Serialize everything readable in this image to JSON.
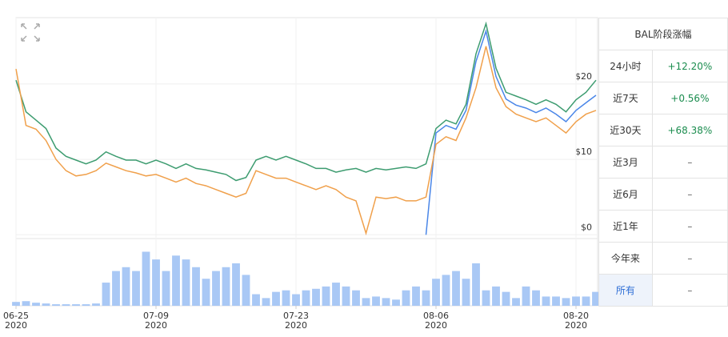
{
  "chart_data": [
    {
      "type": "line",
      "x": [
        0,
        1,
        2,
        3,
        4,
        5,
        6,
        7,
        8,
        9,
        10,
        11,
        12,
        13,
        14,
        15,
        16,
        17,
        18,
        19,
        20,
        21,
        22,
        23,
        24,
        25,
        26,
        27,
        28,
        29,
        30,
        31,
        32,
        33,
        34,
        35,
        36,
        37,
        38,
        39,
        40,
        41,
        42,
        43,
        44,
        45,
        46,
        47,
        48,
        49,
        50,
        51,
        52,
        53,
        54,
        55,
        56,
        57,
        58
      ],
      "xlim": [
        0,
        58
      ],
      "xticks": [
        {
          "value": 0,
          "label": "06-25\n2020"
        },
        {
          "value": 14,
          "label": "07-09\n2020"
        },
        {
          "value": 28,
          "label": "07-23\n2020"
        },
        {
          "value": 42,
          "label": "08-06\n2020"
        },
        {
          "value": 56,
          "label": "08-20\n2020"
        }
      ],
      "ylim": [
        -0.5,
        28.8
      ],
      "yticks": [
        {
          "value": 0,
          "label": "$0"
        },
        {
          "value": 10,
          "label": "$10"
        },
        {
          "value": 20,
          "label": "$20"
        }
      ],
      "grid": true,
      "series": [
        {
          "color": "#3d9c70",
          "values": [
            20.5,
            16.3,
            15.2,
            14.1,
            11.5,
            10.4,
            9.9,
            9.4,
            9.9,
            11.0,
            10.4,
            9.9,
            9.9,
            9.4,
            9.9,
            9.4,
            8.8,
            9.4,
            8.8,
            8.6,
            8.3,
            8.0,
            7.2,
            7.6,
            9.9,
            10.4,
            9.9,
            10.4,
            9.9,
            9.4,
            8.8,
            8.8,
            8.3,
            8.6,
            8.8,
            8.3,
            8.8,
            8.6,
            8.8,
            9.0,
            8.8,
            9.4,
            14.1,
            15.2,
            14.7,
            17.3,
            24.0,
            28.0,
            22.1,
            18.9,
            18.4,
            17.9,
            17.3,
            17.9,
            17.3,
            16.3,
            17.9,
            18.9,
            20.5
          ]
        },
        {
          "color": "#4a86e8",
          "values": [
            null,
            null,
            null,
            null,
            null,
            null,
            null,
            null,
            null,
            null,
            null,
            null,
            null,
            null,
            null,
            null,
            null,
            null,
            null,
            null,
            null,
            null,
            null,
            null,
            null,
            null,
            null,
            null,
            null,
            null,
            null,
            null,
            null,
            null,
            null,
            null,
            null,
            null,
            null,
            null,
            null,
            0.0,
            13.5,
            14.5,
            14.0,
            16.5,
            23.0,
            27.0,
            21.0,
            18.0,
            17.2,
            16.8,
            16.2,
            16.8,
            16.0,
            15.0,
            16.5,
            17.5,
            18.5
          ]
        },
        {
          "color": "#f0a04b",
          "values": [
            22.0,
            14.5,
            14.0,
            12.5,
            10.0,
            8.5,
            7.8,
            8.0,
            8.5,
            9.5,
            9.0,
            8.5,
            8.2,
            7.8,
            8.0,
            7.5,
            7.0,
            7.5,
            6.8,
            6.5,
            6.0,
            5.5,
            5.0,
            5.5,
            8.5,
            8.0,
            7.5,
            7.5,
            7.0,
            6.5,
            6.0,
            6.5,
            6.0,
            5.0,
            4.5,
            0.2,
            5.0,
            4.8,
            5.0,
            4.5,
            4.5,
            5.0,
            12.0,
            13.0,
            12.5,
            15.5,
            19.5,
            25.0,
            19.5,
            17.0,
            16.0,
            15.5,
            15.0,
            15.5,
            14.5,
            13.5,
            15.0,
            16.0,
            16.5
          ]
        }
      ]
    },
    {
      "type": "bar",
      "color": "#a9c8f5",
      "ylim": [
        0,
        85
      ],
      "values": [
        5,
        6,
        4,
        3,
        2,
        2,
        2,
        2,
        3,
        30,
        45,
        50,
        45,
        70,
        60,
        45,
        65,
        60,
        50,
        35,
        45,
        50,
        55,
        40,
        15,
        10,
        18,
        20,
        15,
        20,
        22,
        25,
        30,
        25,
        20,
        10,
        12,
        10,
        8,
        20,
        25,
        20,
        35,
        40,
        45,
        35,
        55,
        20,
        25,
        18,
        10,
        25,
        20,
        12,
        12,
        10,
        12,
        12,
        18
      ]
    }
  ],
  "table": {
    "title": "BAL阶段涨幅",
    "rows": [
      [
        "24小时",
        "+12.20%"
      ],
      [
        "近7天",
        "+0.56%"
      ],
      [
        "近30天",
        "+68.38%"
      ],
      [
        "近3月",
        "–"
      ],
      [
        "近6月",
        "–"
      ],
      [
        "近1年",
        "–"
      ],
      [
        "今年来",
        "–"
      ],
      [
        "所有",
        "–"
      ]
    ]
  }
}
